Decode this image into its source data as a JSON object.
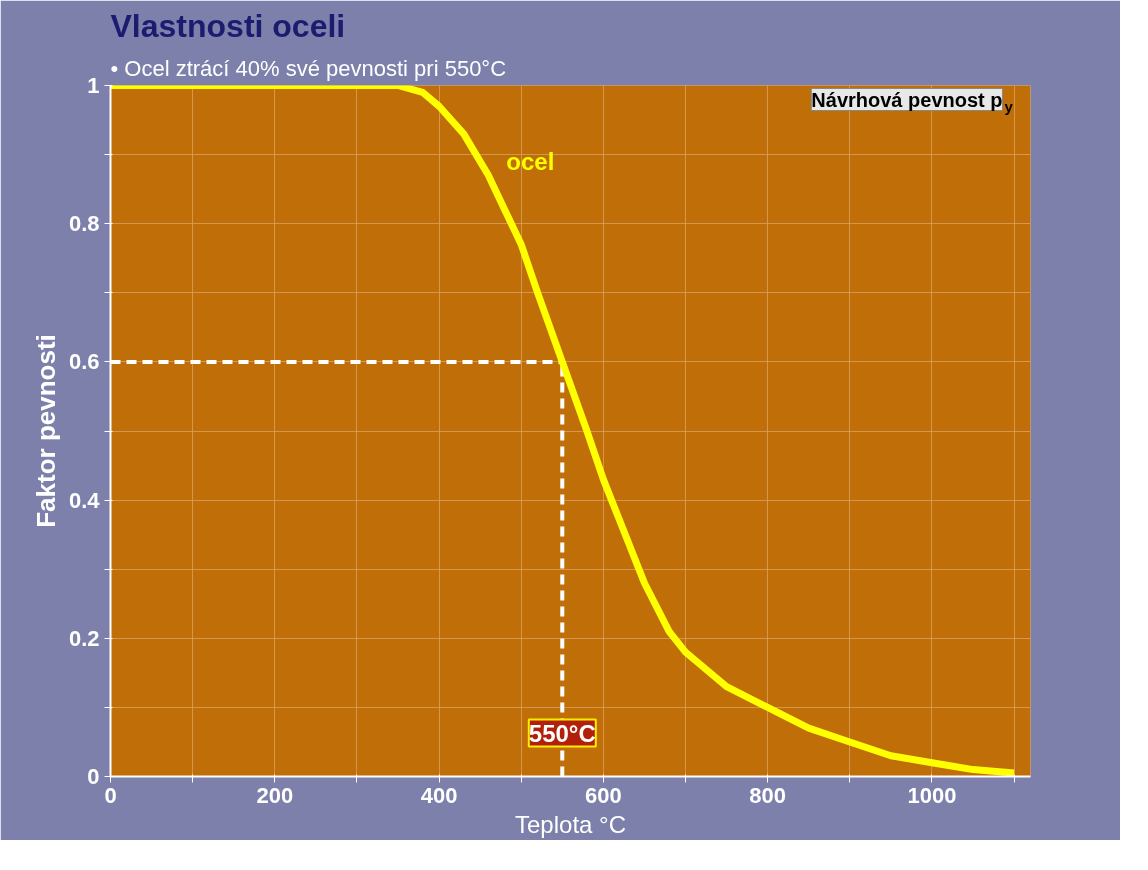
{
  "chart_data": {
    "type": "line",
    "title": "Vlastnosti oceli",
    "subtitle": "• Ocel ztrácí 40% své pevnosti pri 550°C",
    "xlabel": "Teplota °C",
    "ylabel": "Faktor pevnosti",
    "annotations": [
      "Návrhová pevnost p$_{y}$"
    ],
    "series": [
      {
        "name": "ocel",
        "color": "#ffff00",
        "x": [
          0,
          100,
          200,
          300,
          350,
          380,
          400,
          430,
          460,
          480,
          500,
          520,
          550,
          580,
          600,
          630,
          650,
          680,
          700,
          750,
          800,
          850,
          900,
          950,
          1000,
          1050,
          1100
        ],
        "values": [
          1,
          1,
          1,
          1,
          1,
          0.99,
          0.97,
          0.93,
          0.87,
          0.82,
          0.77,
          0.7,
          0.6,
          0.5,
          0.43,
          0.34,
          0.28,
          0.21,
          0.18,
          0.13,
          0.1,
          0.07,
          0.05,
          0.03,
          0.02,
          0.01,
          0.005
        ]
      }
    ],
    "xlim": [
      0,
      1120
    ],
    "ylim": [
      0,
      1
    ],
    "xticks": [
      0,
      {
        "value": 100,
        "label": null
      },
      200,
      {
        "value": 300,
        "label": null
      },
      400,
      {
        "value": 500,
        "label": null
      },
      600,
      {
        "value": 700,
        "label": null
      },
      800,
      {
        "value": 900,
        "label": null
      },
      1000,
      {
        "value": 1100,
        "label": null
      }
    ],
    "yticks": [
      0,
      {
        "value": 0.1,
        "label": null
      },
      0.2,
      {
        "value": 0.3,
        "label": null
      },
      0.4,
      {
        "value": 0.5,
        "label": null
      },
      0.6,
      {
        "value": 0.7,
        "label": null
      },
      0.8,
      {
        "value": 0.9,
        "label": null
      },
      1
    ],
    "ref_lines": [
      {
        "axis": "y",
        "value": 0.6,
        "color": "#ffffff",
        "line_style": "dashed"
      },
      {
        "axis": "x",
        "value": 550,
        "label": "550°C",
        "color": "#ffffff",
        "line_style": "dashed"
      }
    ],
    "grid": true,
    "legend": false,
    "marker": "none",
    "line_style": "solid"
  }
}
